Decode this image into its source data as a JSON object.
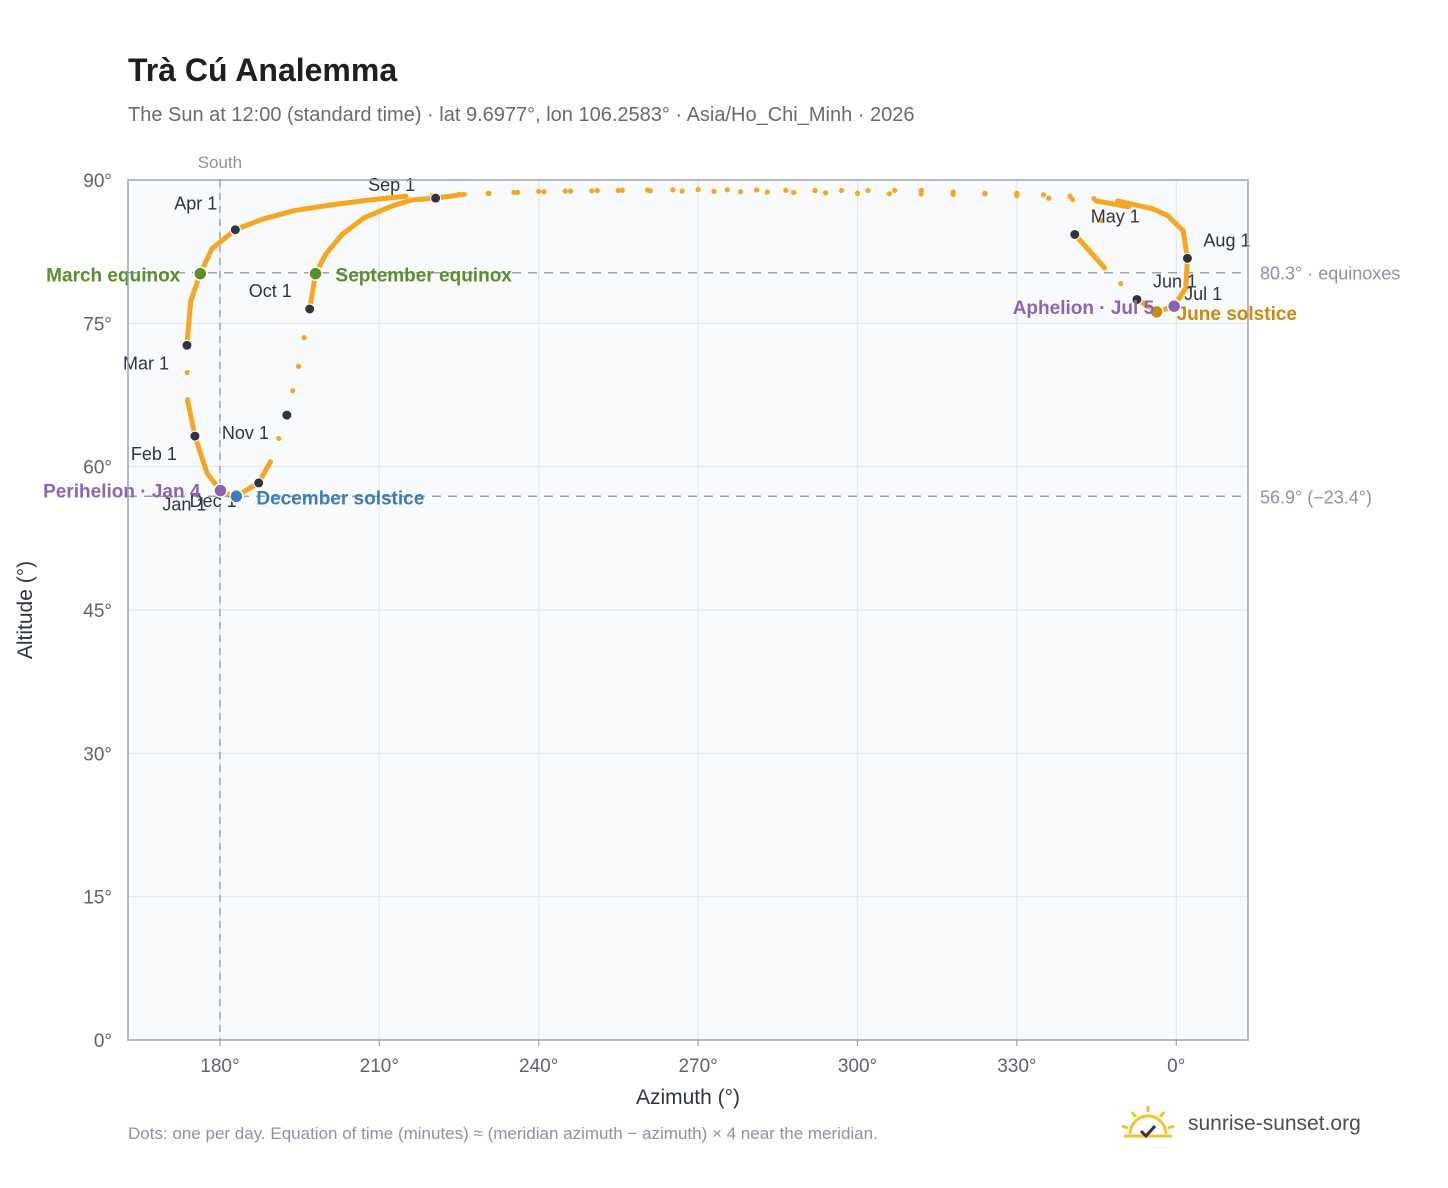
{
  "header": {
    "title": "Trà Cú Analemma",
    "subtitle": "The Sun at 12:00 (standard time) · lat 9.6977°, lon 106.2583° · Asia/Ho_Chi_Minh · 2026"
  },
  "footer": {
    "note": "Dots: one per day. Equation of time (minutes) ≈ (meridian azimuth − azimuth) × 4 near the meridian.",
    "brand": "sunrise-sunset.org"
  },
  "colors": {
    "path": "#f5a623",
    "month_marker": "#2f3540",
    "equinox": "#5a8f2e",
    "december_solstice": "#3d7bbf",
    "june_solstice": "#c98a14",
    "apsis": "#8e63b5",
    "reference": "#9aa5b3",
    "plot_bg": "#f8fafc",
    "grid": "#e3e8ee",
    "frame": "#98a3b3"
  },
  "chart_data": {
    "type": "scatter",
    "xlabel": "Azimuth (°)",
    "ylabel": "Altitude (°)",
    "x_ticks": [
      {
        "label": "180°",
        "azimuth": 180
      },
      {
        "label": "210°",
        "azimuth": 210
      },
      {
        "label": "240°",
        "azimuth": 240
      },
      {
        "label": "270°",
        "azimuth": 270
      },
      {
        "label": "300°",
        "azimuth": 300
      },
      {
        "label": "330°",
        "azimuth": 330
      },
      {
        "label": "0°",
        "azimuth": 0
      }
    ],
    "y_ticks": [
      {
        "label": "0°",
        "altitude": 0
      },
      {
        "label": "15°",
        "altitude": 15
      },
      {
        "label": "30°",
        "altitude": 30
      },
      {
        "label": "45°",
        "altitude": 45
      },
      {
        "label": "60°",
        "altitude": 60
      },
      {
        "label": "75°",
        "altitude": 75
      },
      {
        "label": "90°",
        "altitude": 90
      }
    ],
    "xlim": [
      162.7,
      373.5
    ],
    "ylim": [
      0,
      90
    ],
    "grid": true,
    "south_line": {
      "azimuth": 180,
      "label": "South"
    },
    "reference_lines": [
      {
        "altitude": 80.3,
        "label": "80.3° · equinoxes"
      },
      {
        "altitude": 56.9,
        "label": "56.9° (−23.4°)"
      }
    ],
    "month_markers": [
      {
        "label": "Jan 1",
        "date": "2026-01-01",
        "azimuth": 180.1,
        "altitude": 57.5
      },
      {
        "label": "Feb 1",
        "date": "2026-02-01",
        "azimuth": 175.3,
        "altitude": 63.2
      },
      {
        "label": "Mar 1",
        "date": "2026-03-01",
        "azimuth": 173.8,
        "altitude": 72.7
      },
      {
        "label": "Apr 1",
        "date": "2026-04-01",
        "azimuth": 182.9,
        "altitude": 84.8
      },
      {
        "label": "May 1",
        "date": "2026-05-01",
        "azimuth": 340.9,
        "altitude": 84.3
      },
      {
        "label": "Jun 1",
        "date": "2026-06-01",
        "azimuth": 352.6,
        "altitude": 77.5
      },
      {
        "label": "Jul 1",
        "date": "2026-07-01",
        "azimuth": 359.6,
        "altitude": 76.8
      },
      {
        "label": "Aug 1",
        "date": "2026-08-01",
        "azimuth": 2.1,
        "altitude": 81.8
      },
      {
        "label": "Sep 1",
        "date": "2026-09-01",
        "azimuth": 220.6,
        "altitude": 88.1
      },
      {
        "label": "Oct 1",
        "date": "2026-10-01",
        "azimuth": 196.9,
        "altitude": 76.5
      },
      {
        "label": "Nov 1",
        "date": "2026-11-01",
        "azimuth": 192.6,
        "altitude": 65.4
      },
      {
        "label": "Dec 1",
        "date": "2026-12-01",
        "azimuth": 187.3,
        "altitude": 58.3
      }
    ],
    "events": [
      {
        "label": "March equinox",
        "kind": "equinox",
        "azimuth": 176.3,
        "altitude": 80.2
      },
      {
        "label": "September equinox",
        "kind": "equinox",
        "azimuth": 198.0,
        "altitude": 80.2
      },
      {
        "label": "December solstice",
        "kind": "december_solstice",
        "azimuth": 183.1,
        "altitude": 56.9
      },
      {
        "label": "June solstice",
        "kind": "june_solstice",
        "azimuth": 356.3,
        "altitude": 76.2
      },
      {
        "label": "Perihelion · Jan 4",
        "kind": "apsis",
        "azimuth": 180.1,
        "altitude": 57.5
      },
      {
        "label": "Aphelion · Jul 5",
        "kind": "apsis",
        "azimuth": 359.6,
        "altitude": 76.8
      }
    ],
    "daily_path": [
      {
        "azimuth": 180.1,
        "altitude": 57.5
      },
      {
        "azimuth": 177.6,
        "altitude": 59.3
      },
      {
        "azimuth": 175.3,
        "altitude": 63.2
      },
      {
        "azimuth": 173.9,
        "altitude": 67.0
      },
      {
        "azimuth": 173.8,
        "altitude": 72.7
      },
      {
        "azimuth": 174.5,
        "altitude": 77.3
      },
      {
        "azimuth": 176.3,
        "altitude": 80.2
      },
      {
        "azimuth": 178.5,
        "altitude": 82.8
      },
      {
        "azimuth": 182.9,
        "altitude": 84.8
      },
      {
        "azimuth": 188.0,
        "altitude": 85.9
      },
      {
        "azimuth": 194.0,
        "altitude": 86.8
      },
      {
        "azimuth": 201.0,
        "altitude": 87.4
      },
      {
        "azimuth": 208.0,
        "altitude": 87.9
      },
      {
        "azimuth": 215.0,
        "altitude": 88.3
      },
      {
        "azimuth": 225.0,
        "altitude": 88.5
      },
      {
        "azimuth": 236.0,
        "altitude": 88.7
      },
      {
        "azimuth": 251.0,
        "altitude": 88.9
      },
      {
        "azimuth": 270.0,
        "altitude": 89.0
      },
      {
        "azimuth": 292.0,
        "altitude": 88.9
      },
      {
        "azimuth": 312.0,
        "altitude": 88.9
      },
      {
        "azimuth": 324.0,
        "altitude": 88.6
      },
      {
        "azimuth": 336.0,
        "altitude": 88.1
      },
      {
        "azimuth": 345.0,
        "altitude": 87.8
      },
      {
        "azimuth": 351.0,
        "altitude": 87.2
      },
      {
        "azimuth": 340.9,
        "altitude": 84.3
      },
      {
        "azimuth": 346.5,
        "altitude": 80.8
      },
      {
        "azimuth": 352.6,
        "altitude": 77.5
      },
      {
        "azimuth": 356.3,
        "altitude": 76.2
      },
      {
        "azimuth": 359.6,
        "altitude": 76.8
      },
      {
        "azimuth": 1.8,
        "altitude": 78.7
      },
      {
        "azimuth": 2.1,
        "altitude": 81.8
      },
      {
        "azimuth": 1.3,
        "altitude": 84.7
      },
      {
        "azimuth": 358.3,
        "altitude": 86.3
      },
      {
        "azimuth": 355.5,
        "altitude": 87.0
      },
      {
        "azimuth": 349.0,
        "altitude": 87.8
      },
      {
        "azimuth": 340.0,
        "altitude": 88.3
      },
      {
        "azimuth": 330.0,
        "altitude": 88.6
      },
      {
        "azimuth": 318.0,
        "altitude": 88.5
      },
      {
        "azimuth": 300.0,
        "altitude": 88.6
      },
      {
        "azimuth": 288.0,
        "altitude": 88.7
      },
      {
        "azimuth": 273.0,
        "altitude": 88.8
      },
      {
        "azimuth": 255.0,
        "altitude": 88.9
      },
      {
        "azimuth": 240.0,
        "altitude": 88.8
      },
      {
        "azimuth": 226.0,
        "altitude": 88.5
      },
      {
        "azimuth": 220.6,
        "altitude": 88.1
      },
      {
        "azimuth": 216.0,
        "altitude": 87.9
      },
      {
        "azimuth": 212.0,
        "altitude": 87.2
      },
      {
        "azimuth": 207.0,
        "altitude": 86.0
      },
      {
        "azimuth": 203.0,
        "altitude": 84.3
      },
      {
        "azimuth": 200.0,
        "altitude": 82.3
      },
      {
        "azimuth": 198.0,
        "altitude": 80.2
      },
      {
        "azimuth": 196.9,
        "altitude": 76.5
      },
      {
        "azimuth": 194.8,
        "altitude": 70.5
      },
      {
        "azimuth": 192.6,
        "altitude": 65.4
      },
      {
        "azimuth": 189.5,
        "altitude": 60.5
      },
      {
        "azimuth": 187.3,
        "altitude": 58.3
      },
      {
        "azimuth": 183.1,
        "altitude": 56.9
      },
      {
        "azimuth": 181.0,
        "altitude": 57.2
      },
      {
        "azimuth": 180.1,
        "altitude": 57.5
      }
    ]
  }
}
